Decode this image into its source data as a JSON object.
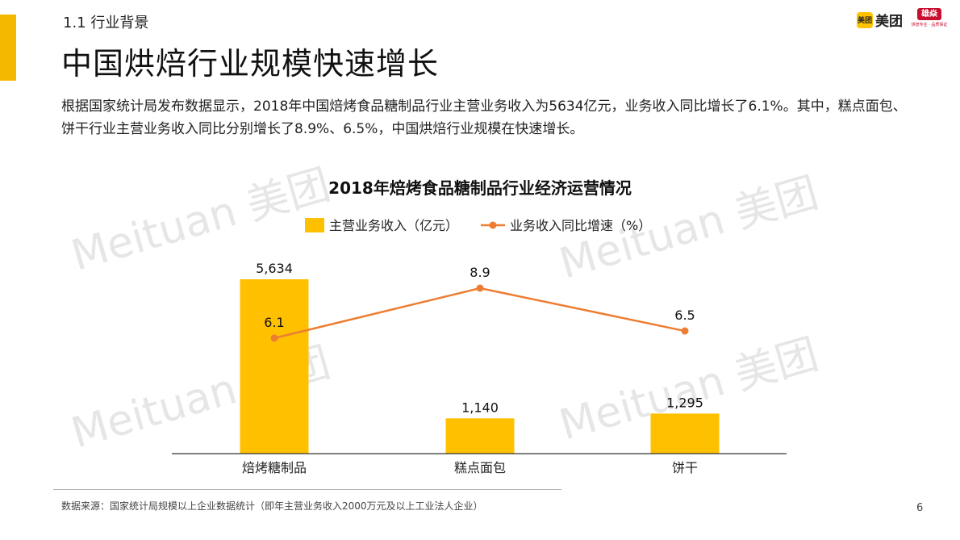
{
  "header": {
    "section_label": "1.1 行业背景",
    "title": "中国烘焙行业规模快速增长",
    "logo": {
      "badge_text": "美团",
      "brand_text": "美团"
    },
    "partner_logo": {
      "mark_text": "雄焱",
      "sub_text": "烘焙专业 · 品质保证"
    }
  },
  "intro": "根据国家统计局发布数据显示，2018年中国焙烤食品糖制品行业主营业务收入为5634亿元，业务收入同比增长了6.1%。其中，糕点面包、饼干行业主营业务收入同比分别增长了8.9%、6.5%，中国烘焙行业规模在快速增长。",
  "watermark": "Meituan 美团",
  "chart_data": {
    "type": "bar",
    "title": "2018年焙烤食品糖制品行业经济运营情况",
    "categories": [
      "焙烤糖制品",
      "糕点面包",
      "饼干"
    ],
    "series": [
      {
        "name": "主营业务收入（亿元）",
        "type": "bar",
        "values": [
          5634,
          1140,
          1295
        ],
        "labels": [
          "5,634",
          "1,140",
          "1,295"
        ],
        "color": "#ffc000"
      },
      {
        "name": "业务收入同比增速（%）",
        "type": "line",
        "axis": "secondary",
        "values": [
          6.1,
          8.9,
          6.5
        ],
        "labels": [
          "6.1",
          "8.9",
          "6.5"
        ],
        "color": "#ed7d31"
      }
    ],
    "ylim": [
      0,
      6000
    ],
    "y2lim": [
      0,
      12
    ],
    "legend": "top",
    "grid": false
  },
  "footer": {
    "source": "数据来源：国家统计局规模以上企业数据统计（即年主营业务收入2000万元及以上工业法人企业）",
    "page_number": "6"
  }
}
